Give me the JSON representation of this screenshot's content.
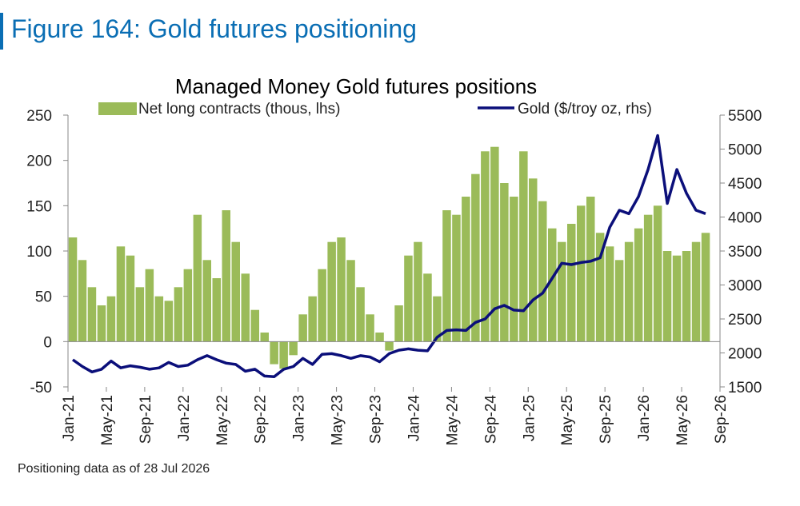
{
  "figure_title": "Figure 164: Gold futures positioning",
  "footnote": "Positioning data as of 28 Jul 2026",
  "colors": {
    "title": "#0a6eb4",
    "bars": "#9bbb59",
    "line": "#0b0f7a"
  },
  "chart_data": {
    "type": "bar+line",
    "title": "Managed Money Gold futures positions",
    "legend": {
      "placement": "top",
      "entries": [
        "Net long contracts (thous, lhs)",
        "Gold ($/troy oz, rhs)"
      ]
    },
    "x_ticks": [
      "Jan-21",
      "May-21",
      "Sep-21",
      "Jan-22",
      "May-22",
      "Sep-22",
      "Jan-23",
      "May-23",
      "Sep-23",
      "Jan-24",
      "May-24",
      "Sep-24",
      "Jan-25",
      "May-25",
      "Sep-25",
      "Jan-26",
      "May-26",
      "Sep-26"
    ],
    "x_range": [
      "2021-01-01",
      "2026-09-01"
    ],
    "y_left": {
      "ticks": [
        250,
        200,
        150,
        100,
        50,
        0,
        -50
      ],
      "range": [
        -50,
        250
      ],
      "label": ""
    },
    "y_right": {
      "ticks": [
        5500,
        5000,
        4500,
        4000,
        3500,
        3000,
        2500,
        2000,
        1500
      ],
      "range": [
        1500,
        5500
      ],
      "label": ""
    },
    "grid": false,
    "series": [
      {
        "name": "Net long contracts (thous, lhs)",
        "type": "bar",
        "axis": "left",
        "x": [
          "2021-01",
          "2021-02",
          "2021-03",
          "2021-04",
          "2021-05",
          "2021-06",
          "2021-07",
          "2021-08",
          "2021-09",
          "2021-10",
          "2021-11",
          "2021-12",
          "2022-01",
          "2022-02",
          "2022-03",
          "2022-04",
          "2022-05",
          "2022-06",
          "2022-07",
          "2022-08",
          "2022-09",
          "2022-10",
          "2022-11",
          "2022-12",
          "2023-01",
          "2023-02",
          "2023-03",
          "2023-04",
          "2023-05",
          "2023-06",
          "2023-07",
          "2023-08",
          "2023-09",
          "2023-10",
          "2023-11",
          "2023-12",
          "2024-01",
          "2024-02",
          "2024-03",
          "2024-04",
          "2024-05",
          "2024-06",
          "2024-07",
          "2024-08",
          "2024-09",
          "2024-10",
          "2024-11",
          "2024-12",
          "2025-01",
          "2025-02",
          "2025-03",
          "2025-04",
          "2025-05",
          "2025-06",
          "2025-07",
          "2025-08",
          "2025-09",
          "2025-10",
          "2025-11",
          "2025-12",
          "2026-01",
          "2026-02",
          "2026-03",
          "2026-04",
          "2026-05",
          "2026-06",
          "2026-07"
        ],
        "values": [
          115,
          90,
          60,
          40,
          50,
          105,
          95,
          60,
          80,
          50,
          45,
          60,
          80,
          140,
          90,
          70,
          145,
          110,
          75,
          35,
          10,
          -25,
          -30,
          -15,
          30,
          50,
          80,
          110,
          115,
          90,
          60,
          30,
          10,
          -10,
          40,
          95,
          110,
          75,
          50,
          145,
          140,
          160,
          185,
          210,
          215,
          175,
          160,
          210,
          180,
          155,
          125,
          110,
          130,
          150,
          160,
          120,
          105,
          90,
          110,
          125,
          140,
          150,
          100,
          95,
          100,
          110,
          120
        ]
      },
      {
        "name": "Gold ($/troy oz, rhs)",
        "type": "line",
        "axis": "right",
        "x": [
          "2021-01",
          "2021-02",
          "2021-03",
          "2021-04",
          "2021-05",
          "2021-06",
          "2021-07",
          "2021-08",
          "2021-09",
          "2021-10",
          "2021-11",
          "2021-12",
          "2022-01",
          "2022-02",
          "2022-03",
          "2022-04",
          "2022-05",
          "2022-06",
          "2022-07",
          "2022-08",
          "2022-09",
          "2022-10",
          "2022-11",
          "2022-12",
          "2023-01",
          "2023-02",
          "2023-03",
          "2023-04",
          "2023-05",
          "2023-06",
          "2023-07",
          "2023-08",
          "2023-09",
          "2023-10",
          "2023-11",
          "2023-12",
          "2024-01",
          "2024-02",
          "2024-03",
          "2024-04",
          "2024-05",
          "2024-06",
          "2024-07",
          "2024-08",
          "2024-09",
          "2024-10",
          "2024-11",
          "2024-12",
          "2025-01",
          "2025-02",
          "2025-03",
          "2025-04",
          "2025-05",
          "2025-06",
          "2025-07",
          "2025-08",
          "2025-09",
          "2025-10",
          "2025-11",
          "2025-12",
          "2026-01",
          "2026-02",
          "2026-03",
          "2026-04",
          "2026-05",
          "2026-06",
          "2026-07"
        ],
        "values": [
          1900,
          1800,
          1720,
          1760,
          1880,
          1780,
          1810,
          1790,
          1760,
          1780,
          1860,
          1800,
          1820,
          1900,
          1960,
          1900,
          1850,
          1830,
          1730,
          1760,
          1660,
          1650,
          1760,
          1800,
          1920,
          1830,
          1980,
          1990,
          1960,
          1920,
          1960,
          1940,
          1870,
          1990,
          2040,
          2060,
          2040,
          2030,
          2230,
          2330,
          2340,
          2330,
          2450,
          2500,
          2650,
          2700,
          2630,
          2620,
          2780,
          2880,
          3100,
          3320,
          3300,
          3330,
          3350,
          3400,
          3850,
          4100,
          4050,
          4300,
          4700,
          5200,
          4200,
          4700,
          4350,
          4100,
          4050
        ]
      }
    ]
  }
}
